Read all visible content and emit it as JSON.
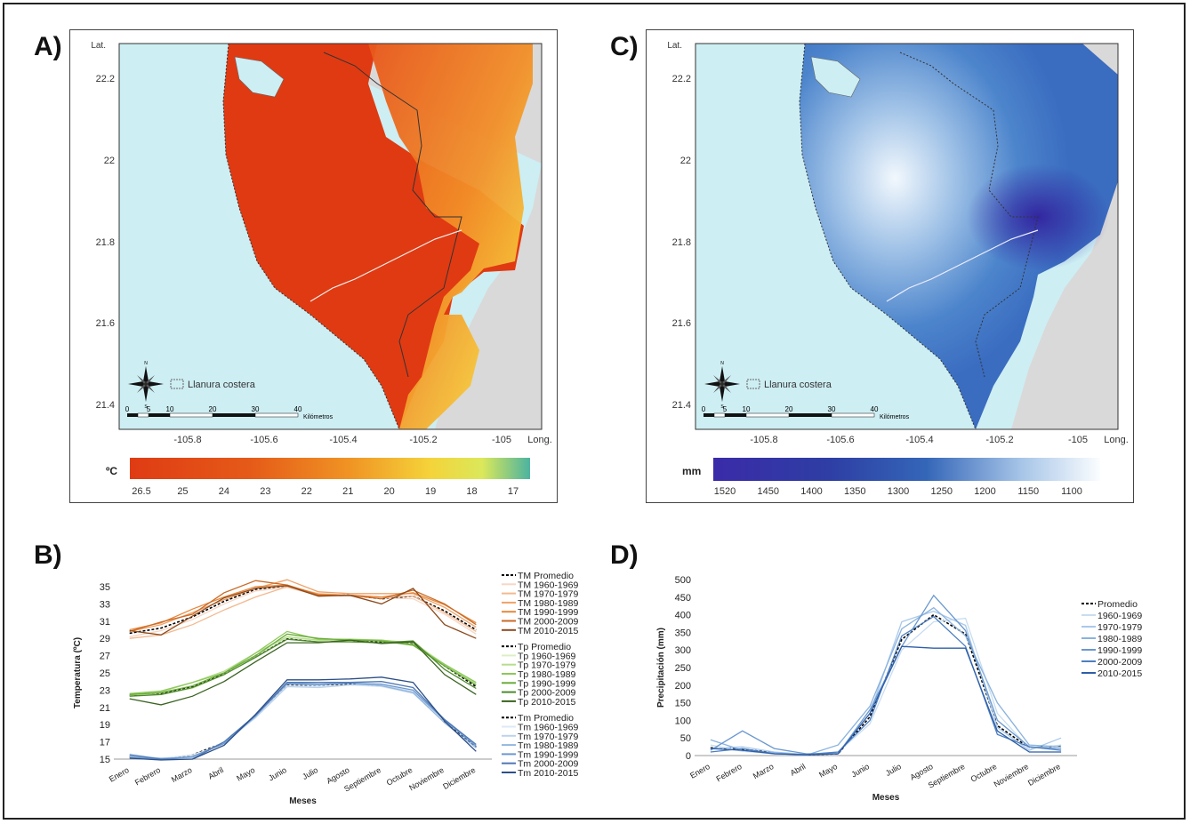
{
  "panels": {
    "a": {
      "letter": "A)"
    },
    "b": {
      "letter": "B)"
    },
    "c": {
      "letter": "C)"
    },
    "d": {
      "letter": "D)"
    }
  },
  "map_common": {
    "lat_label": "Lat.",
    "long_label": "Long.",
    "lat_ticks": [
      "22.2",
      "22",
      "21.8",
      "21.6",
      "21.4"
    ],
    "long_ticks": [
      "-105.8",
      "-105.6",
      "-105.4",
      "-105.2",
      "-105"
    ],
    "legend_label": "Llanura costera",
    "scale_ticks": [
      "0",
      "5",
      "10",
      "20",
      "30",
      "40"
    ],
    "scale_unit": "Kilómetros",
    "compass": {
      "n": "N",
      "s": "S",
      "e": "E",
      "w": "W"
    }
  },
  "map_a": {
    "unit": "ºC",
    "colorbar_ticks": [
      "26.5",
      "25",
      "24",
      "23",
      "22",
      "21",
      "20",
      "19",
      "18",
      "17"
    ],
    "colors": {
      "land_low": "#e03a12",
      "land_mid": "#f08a1c",
      "land_high": "#f2e43c",
      "land_top": "#52b79a",
      "sea": "#cdeef3",
      "outside": "#d9d9d9"
    }
  },
  "map_c": {
    "unit": "mm",
    "colorbar_ticks": [
      "1520",
      "1450",
      "1400",
      "1350",
      "1300",
      "1250",
      "1200",
      "1150",
      "1100"
    ],
    "colors": {
      "high": "#3a2ea8",
      "mid": "#3a6fc4",
      "low": "#eef6fc",
      "sea": "#cdeef3",
      "outside": "#d9d9d9"
    }
  },
  "chart_data": [
    {
      "type": "line",
      "panel": "B)",
      "xlabel": "Meses",
      "ylabel": "Temperatura (ºC)",
      "ylim": [
        15,
        35
      ],
      "yticks": [
        15,
        17,
        19,
        21,
        23,
        25,
        27,
        29,
        31,
        33,
        35
      ],
      "categories": [
        "Enero",
        "Febrero",
        "Marzo",
        "Abril",
        "Mayo",
        "Junio",
        "Julio",
        "Agosto",
        "Septiembre",
        "Octubre",
        "Noviembre",
        "Diciembre"
      ],
      "legend_position": "right",
      "series": [
        {
          "name": "TM Promedio",
          "color": "#000000",
          "dashed": true,
          "values": [
            29.6,
            30.2,
            31.5,
            33.3,
            34.7,
            35.1,
            34.1,
            34.0,
            33.6,
            33.9,
            32.2,
            30.0
          ]
        },
        {
          "name": "TM 1960-1969",
          "color": "#f7d6c4",
          "dashed": false,
          "values": [
            29.2,
            29.9,
            31.2,
            33.0,
            34.5,
            34.9,
            34.0,
            33.9,
            33.7,
            33.6,
            31.8,
            29.5
          ]
        },
        {
          "name": "TM 1970-1979",
          "color": "#f2b98f",
          "dashed": false,
          "values": [
            29.0,
            29.4,
            30.6,
            32.3,
            33.8,
            35.0,
            34.2,
            34.0,
            33.8,
            33.9,
            32.0,
            29.8
          ]
        },
        {
          "name": "TM 1980-1989",
          "color": "#efa267",
          "dashed": false,
          "values": [
            29.8,
            30.6,
            32.0,
            33.5,
            34.8,
            35.8,
            34.4,
            34.2,
            34.2,
            34.2,
            32.6,
            30.3
          ]
        },
        {
          "name": "TM 1990-1999",
          "color": "#e8873c",
          "dashed": false,
          "values": [
            30.0,
            30.8,
            32.4,
            33.8,
            35.0,
            35.2,
            34.1,
            34.0,
            33.8,
            34.3,
            32.9,
            30.8
          ]
        },
        {
          "name": "TM 2000-2009",
          "color": "#c96a26",
          "dashed": false,
          "values": [
            29.8,
            30.9,
            31.8,
            34.3,
            35.7,
            35.2,
            34.0,
            34.0,
            33.6,
            34.6,
            33.0,
            30.6
          ]
        },
        {
          "name": "TM 2010-2015",
          "color": "#8c4a1c",
          "dashed": false,
          "values": [
            29.9,
            29.4,
            31.6,
            33.7,
            34.8,
            35.1,
            33.9,
            34.0,
            33.0,
            34.8,
            30.6,
            29.0
          ]
        },
        {
          "name": "Tp Promedio",
          "color": "#000000",
          "dashed": true,
          "values": [
            22.4,
            22.6,
            23.4,
            24.9,
            27.0,
            29.0,
            28.7,
            28.7,
            28.6,
            28.4,
            25.8,
            23.4
          ]
        },
        {
          "name": "Tp 1960-1969",
          "color": "#dcefc4",
          "dashed": false,
          "values": [
            22.5,
            22.5,
            23.2,
            24.8,
            27.0,
            29.1,
            28.7,
            28.8,
            28.7,
            28.6,
            26.0,
            23.6
          ]
        },
        {
          "name": "Tp 1970-1979",
          "color": "#b7dd8e",
          "dashed": false,
          "values": [
            22.4,
            22.8,
            23.9,
            25.2,
            27.3,
            29.2,
            28.8,
            28.7,
            28.8,
            28.5,
            25.9,
            23.8
          ]
        },
        {
          "name": "Tp 1980-1989",
          "color": "#8cc85a",
          "dashed": false,
          "values": [
            22.6,
            22.9,
            23.9,
            25.0,
            27.3,
            29.8,
            28.9,
            28.9,
            28.8,
            28.3,
            26.0,
            23.9
          ]
        },
        {
          "name": "Tp 1990-1999",
          "color": "#6aab3a",
          "dashed": false,
          "values": [
            22.5,
            22.7,
            23.5,
            25.0,
            27.0,
            29.5,
            29.0,
            28.8,
            28.7,
            28.2,
            25.8,
            23.6
          ]
        },
        {
          "name": "Tp 2000-2009",
          "color": "#4e8a2c",
          "dashed": false,
          "values": [
            22.3,
            22.5,
            23.3,
            24.8,
            26.8,
            28.9,
            28.6,
            28.6,
            28.5,
            28.7,
            25.4,
            23.2
          ]
        },
        {
          "name": "Tp 2010-2015",
          "color": "#3a6320",
          "dashed": false,
          "values": [
            22.0,
            21.3,
            22.3,
            24.0,
            26.3,
            28.5,
            28.5,
            28.8,
            28.4,
            28.6,
            24.8,
            22.5
          ]
        },
        {
          "name": "Tm Promedio",
          "color": "#000000",
          "dashed": true,
          "values": [
            15.3,
            15.0,
            15.5,
            16.9,
            20.0,
            23.6,
            23.6,
            23.7,
            23.5,
            22.7,
            19.3,
            16.4
          ]
        },
        {
          "name": "Tm 1960-1969",
          "color": "#dde9f5",
          "dashed": false,
          "values": [
            15.6,
            15.1,
            15.5,
            16.7,
            19.9,
            23.5,
            23.4,
            23.6,
            23.4,
            22.6,
            19.4,
            16.7
          ]
        },
        {
          "name": "Tm 1970-1979",
          "color": "#bcd3ec",
          "dashed": false,
          "values": [
            15.4,
            15.0,
            15.3,
            16.9,
            19.8,
            23.4,
            23.3,
            23.6,
            23.6,
            22.8,
            19.5,
            16.5
          ]
        },
        {
          "name": "Tm 1980-1989",
          "color": "#92b6df",
          "dashed": false,
          "values": [
            15.3,
            15.1,
            15.2,
            17.0,
            20.1,
            23.7,
            23.6,
            23.8,
            23.5,
            22.7,
            19.2,
            16.3
          ]
        },
        {
          "name": "Tm 1990-1999",
          "color": "#6d98cf",
          "dashed": false,
          "values": [
            15.2,
            15.0,
            15.3,
            16.8,
            20.0,
            23.8,
            23.7,
            23.8,
            23.7,
            23.0,
            19.5,
            16.5
          ]
        },
        {
          "name": "Tm 2000-2009",
          "color": "#4e78b5",
          "dashed": false,
          "values": [
            15.5,
            15.0,
            15.0,
            17.0,
            20.1,
            23.9,
            23.9,
            23.9,
            24.0,
            23.3,
            19.6,
            16.7
          ]
        },
        {
          "name": "Tm 2010-2015",
          "color": "#2c4f88",
          "dashed": false,
          "values": [
            15.1,
            14.9,
            15.0,
            16.6,
            20.2,
            24.2,
            24.2,
            24.3,
            24.5,
            23.9,
            19.4,
            15.9
          ]
        }
      ]
    },
    {
      "type": "line",
      "panel": "D)",
      "xlabel": "Meses",
      "ylabel": "Precipitación (mm)",
      "ylim": [
        0,
        500
      ],
      "yticks": [
        0,
        50,
        100,
        150,
        200,
        250,
        300,
        350,
        400,
        450,
        500
      ],
      "categories": [
        "Enero",
        "Febrero",
        "Marzo",
        "Abril",
        "Mayo",
        "Junio",
        "Julio",
        "Agosto",
        "Septiembre",
        "Octubre",
        "Noviembre",
        "Diciembre"
      ],
      "legend_position": "right",
      "series": [
        {
          "name": "Promedio",
          "color": "#000000",
          "dashed": true,
          "values": [
            22,
            18,
            8,
            2,
            5,
            110,
            330,
            400,
            345,
            85,
            22,
            28
          ]
        },
        {
          "name": "1960-1969",
          "color": "#c8ddf0",
          "dashed": false,
          "values": [
            30,
            12,
            5,
            2,
            10,
            90,
            300,
            380,
            390,
            120,
            20,
            30
          ]
        },
        {
          "name": "1970-1979",
          "color": "#a9c9ea",
          "dashed": false,
          "values": [
            20,
            25,
            10,
            3,
            8,
            120,
            380,
            410,
            370,
            80,
            15,
            50
          ]
        },
        {
          "name": "1980-1989",
          "color": "#89b2de",
          "dashed": false,
          "values": [
            45,
            15,
            8,
            1,
            30,
            140,
            360,
            420,
            340,
            150,
            30,
            25
          ]
        },
        {
          "name": "1990-1999",
          "color": "#6a98cf",
          "dashed": false,
          "values": [
            15,
            70,
            20,
            5,
            5,
            130,
            310,
            455,
            355,
            100,
            25,
            20
          ]
        },
        {
          "name": "2000-2009",
          "color": "#4d7fc0",
          "dashed": false,
          "values": [
            10,
            20,
            5,
            3,
            10,
            100,
            340,
            395,
            310,
            60,
            25,
            15
          ]
        },
        {
          "name": "2010-2015",
          "color": "#2e5ea8",
          "dashed": false,
          "values": [
            20,
            15,
            5,
            2,
            5,
            120,
            310,
            305,
            305,
            70,
            10,
            10
          ]
        }
      ]
    }
  ]
}
